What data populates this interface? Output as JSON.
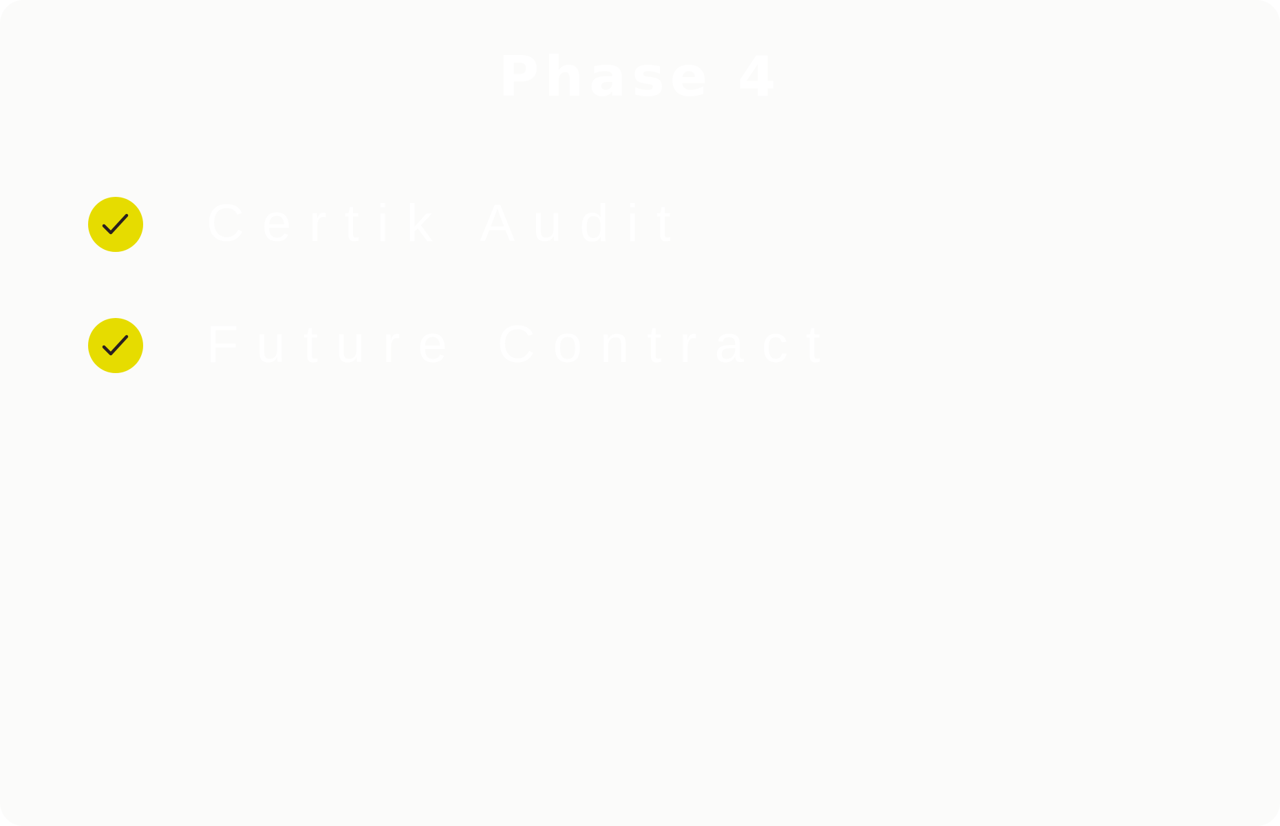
{
  "title": "Phase 4",
  "items": [
    {
      "label": "Certik Audit",
      "icon": "check-circle-icon",
      "completed": true
    },
    {
      "label": "Future Contract",
      "icon": "check-circle-icon",
      "completed": true
    }
  ],
  "colors": {
    "card_background": "#fbfbfa",
    "text": "#ffffff",
    "badge_fill": "#e6dc00",
    "check_mark": "#2a1f1f"
  }
}
